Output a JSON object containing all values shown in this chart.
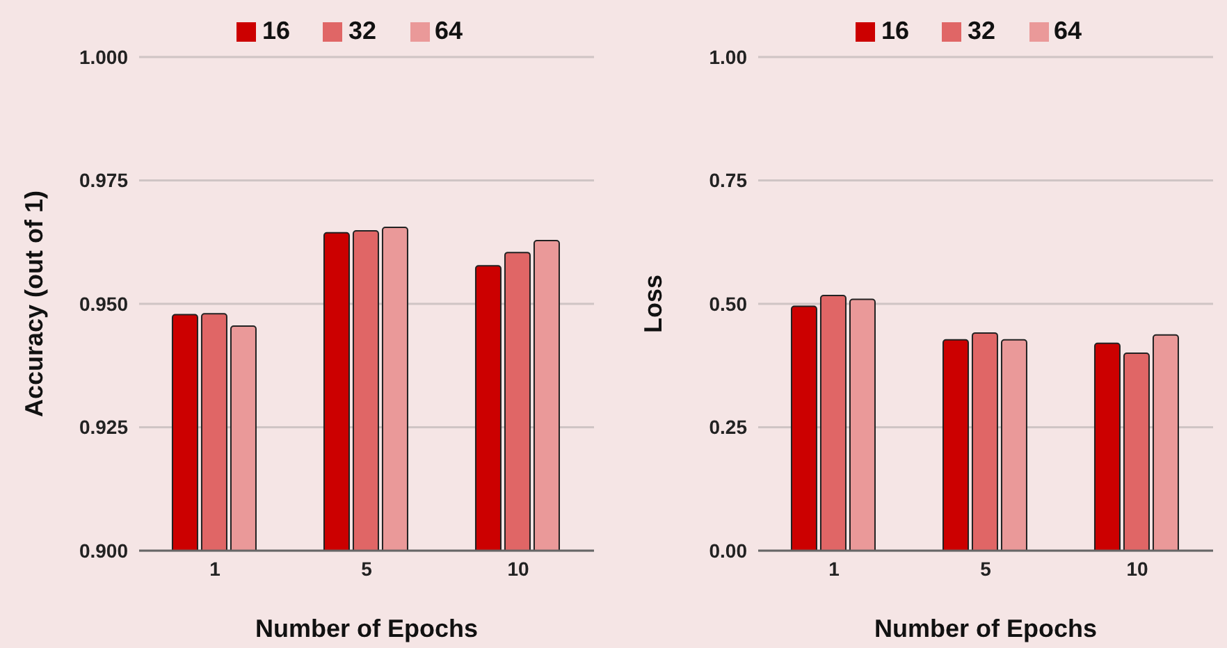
{
  "chart_data": [
    {
      "type": "bar",
      "categories": [
        "1",
        "5",
        "10"
      ],
      "xlabel": "Number of Epochs",
      "ylabel": "Accuracy (out of 1)",
      "ylim": [
        0.9,
        1.0
      ],
      "yticks": [
        {
          "value": 0.9,
          "label": "0.900"
        },
        0.925,
        {
          "value": 0.95,
          "label": "0.950"
        },
        0.975,
        {
          "value": 1.0,
          "label": "1.000"
        }
      ],
      "grid": "y",
      "legend": "top",
      "series": [
        {
          "name": "16",
          "color": "#cc0000",
          "values": [
            0.9478,
            0.9644,
            0.9577
          ]
        },
        {
          "name": "32",
          "color": "#e06666",
          "values": [
            0.948,
            0.9648,
            0.9604
          ]
        },
        {
          "name": "64",
          "color": "#ea9999",
          "values": [
            0.9455,
            0.9655,
            0.9628
          ]
        }
      ]
    },
    {
      "type": "bar",
      "categories": [
        "1",
        "5",
        "10"
      ],
      "xlabel": "Number of Epochs",
      "ylabel": "Loss",
      "ylim": [
        0,
        1.0
      ],
      "yticks": [
        {
          "value": 0,
          "label": "0.00"
        },
        0.25,
        {
          "value": 0.5,
          "label": "0.50"
        },
        0.75,
        {
          "value": 1.0,
          "label": "1.00"
        }
      ],
      "grid": "y",
      "legend": "top",
      "series": [
        {
          "name": "16",
          "color": "#cc0000",
          "values": [
            0.495,
            0.427,
            0.42
          ]
        },
        {
          "name": "32",
          "color": "#e06666",
          "values": [
            0.517,
            0.441,
            0.4
          ]
        },
        {
          "name": "64",
          "color": "#ea9999",
          "values": [
            0.509,
            0.427,
            0.437
          ]
        }
      ]
    }
  ]
}
